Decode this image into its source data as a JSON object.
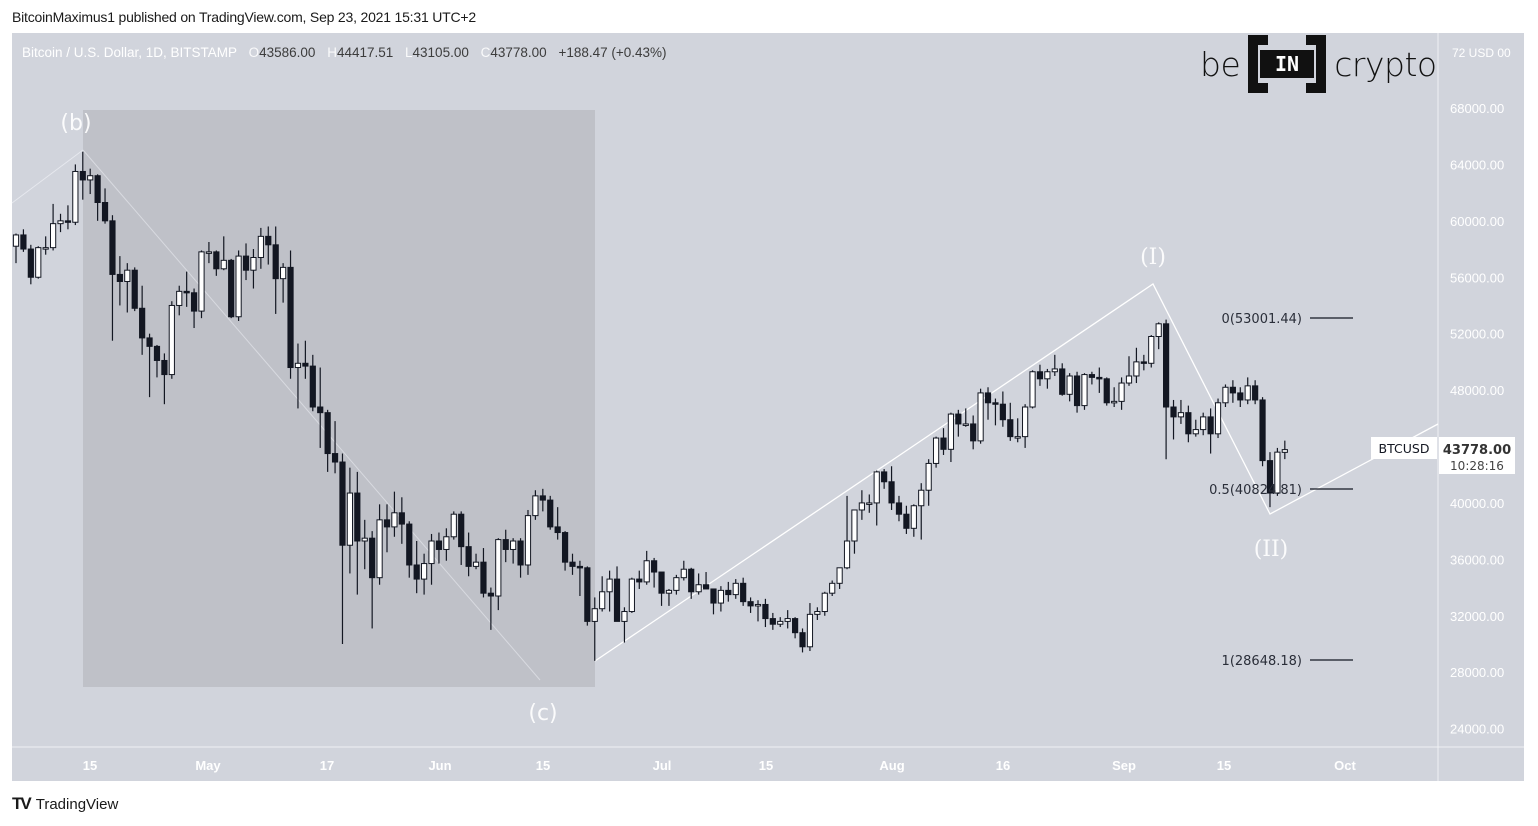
{
  "header": {
    "published": "BitcoinMaximus1 published on TradingView.com, Sep 23, 2021 15:31 UTC+2"
  },
  "legend": {
    "symbol": "Bitcoin / U.S. Dollar, 1D, BITSTAMP",
    "o_label": "O",
    "o": "43586.00",
    "h_label": "H",
    "h": "44417.51",
    "l_label": "L",
    "l": "43105.00",
    "c_label": "C",
    "c": "43778.00",
    "change": "+188.47 (+0.43%)"
  },
  "logo": {
    "left": "be",
    "mid": "IN",
    "right": "crypto"
  },
  "footer": {
    "brand_mark": "TV",
    "brand": "TradingView"
  },
  "price_axis": {
    "currency_label": "72 USD 00",
    "ticks": [
      "68000.00",
      "64000.00",
      "60000.00",
      "56000.00",
      "52000.00",
      "48000.00",
      "40000.00",
      "36000.00",
      "32000.00",
      "28000.00",
      "24000.00"
    ],
    "last_price": "43778.00",
    "countdown": "10:28:16",
    "symbol_tag": "BTCUSD"
  },
  "time_axis": {
    "ticks": [
      "15",
      "May",
      "17",
      "Jun",
      "15",
      "Jul",
      "15",
      "Aug",
      "16",
      "Sep",
      "15",
      "Oct"
    ]
  },
  "colors": {
    "background": "#d1d4dc",
    "shaded_box": "#bfc1c8",
    "up_body": "#ffffff",
    "down_body": "#131722",
    "wick": "#131722",
    "annotation": "#ffffff",
    "fib_text": "#2a2e39"
  },
  "annotations": {
    "wave_b": "(b)",
    "wave_c": "(c)",
    "wave_I": "(I)",
    "wave_II": "(II)",
    "fib_0": "0(53001.44)",
    "fib_05": "0.5(40824.81)",
    "fib_1": "1(28648.18)"
  },
  "chart_data": {
    "type": "candlestick",
    "title": "Bitcoin / U.S. Dollar, 1D, BITSTAMP",
    "xlabel": "",
    "ylabel": "USD",
    "ylim": [
      22500,
      72000
    ],
    "grid": false,
    "x_tick_labels": [
      "15",
      "May",
      "17",
      "Jun",
      "15",
      "Jul",
      "15",
      "Aug",
      "16",
      "Sep",
      "15",
      "Oct"
    ],
    "y_tick_labels": [
      24000,
      28000,
      32000,
      36000,
      40000,
      48000,
      52000,
      56000,
      60000,
      64000,
      68000
    ],
    "last": {
      "open": 43586.0,
      "high": 44417.51,
      "low": 43105.0,
      "close": 43778.0,
      "change": 188.47,
      "change_pct": 0.43
    },
    "fibonacci": [
      {
        "level": 0,
        "price": 53001.44
      },
      {
        "level": 0.5,
        "price": 40824.81
      },
      {
        "level": 1,
        "price": 28648.18
      }
    ],
    "wave_labels": [
      {
        "label": "(b)",
        "date": "2021-04-14",
        "price": 64900
      },
      {
        "label": "(c)",
        "date": "2021-06-22",
        "price": 28800
      },
      {
        "label": "(I)",
        "date": "2021-09-07",
        "price": 55500
      },
      {
        "label": "(II)",
        "date": "2021-09-21",
        "price": 39000
      }
    ],
    "candles": [
      [
        "04-05",
        58200,
        59100,
        57000,
        59000
      ],
      [
        "04-06",
        59000,
        59400,
        57800,
        58000
      ],
      [
        "04-07",
        58000,
        58300,
        55500,
        56000
      ],
      [
        "04-08",
        56000,
        58200,
        55900,
        58100
      ],
      [
        "04-09",
        58100,
        58900,
        57600,
        58100
      ],
      [
        "04-10",
        58100,
        61200,
        57900,
        59800
      ],
      [
        "04-11",
        59800,
        60500,
        59200,
        60000
      ],
      [
        "04-12",
        60000,
        61100,
        59400,
        59900
      ],
      [
        "04-13",
        59900,
        64000,
        59700,
        63500
      ],
      [
        "04-14",
        63500,
        64900,
        61500,
        62900
      ],
      [
        "04-15",
        62900,
        63700,
        61900,
        63200
      ],
      [
        "04-16",
        63200,
        63300,
        60000,
        61300
      ],
      [
        "04-17",
        61300,
        62300,
        59800,
        60000
      ],
      [
        "04-18",
        60000,
        60400,
        51500,
        56200
      ],
      [
        "04-19",
        56200,
        57500,
        54000,
        55700
      ],
      [
        "04-20",
        55700,
        57000,
        53500,
        56500
      ],
      [
        "04-21",
        56500,
        56700,
        53600,
        53800
      ],
      [
        "04-22",
        53800,
        55400,
        50500,
        51700
      ],
      [
        "04-23",
        51700,
        52000,
        47500,
        51100
      ],
      [
        "04-24",
        51100,
        51200,
        48900,
        50100
      ],
      [
        "04-25",
        50100,
        50600,
        47000,
        49100
      ],
      [
        "04-26",
        49100,
        54300,
        48800,
        54000
      ],
      [
        "04-27",
        54000,
        55400,
        53300,
        55000
      ],
      [
        "04-28",
        55000,
        56400,
        53900,
        54900
      ],
      [
        "04-29",
        54900,
        55200,
        52400,
        53600
      ],
      [
        "04-30",
        53600,
        57900,
        53100,
        57800
      ],
      [
        "05-01",
        57800,
        58500,
        57000,
        57800
      ],
      [
        "05-02",
        57800,
        57900,
        56100,
        56600
      ],
      [
        "05-03",
        56600,
        58900,
        56500,
        57200
      ],
      [
        "05-04",
        57200,
        57300,
        53100,
        53200
      ],
      [
        "05-05",
        53200,
        57900,
        52900,
        57500
      ],
      [
        "05-06",
        57500,
        58400,
        55800,
        56500
      ],
      [
        "05-07",
        56500,
        58000,
        55200,
        57400
      ],
      [
        "05-08",
        57400,
        59500,
        56600,
        58900
      ],
      [
        "05-09",
        58900,
        59600,
        56900,
        58300
      ],
      [
        "05-10",
        58300,
        59600,
        53400,
        55900
      ],
      [
        "05-11",
        55900,
        57000,
        54200,
        56700
      ],
      [
        "05-12",
        56700,
        57900,
        48800,
        49600
      ],
      [
        "05-13",
        49600,
        51300,
        46700,
        49900
      ],
      [
        "05-14",
        49900,
        51500,
        48800,
        49700
      ],
      [
        "05-15",
        49700,
        50500,
        46500,
        46800
      ],
      [
        "05-16",
        46800,
        49600,
        43900,
        46400
      ],
      [
        "05-17",
        46400,
        46600,
        42200,
        43500
      ],
      [
        "05-18",
        43500,
        45800,
        42100,
        42900
      ],
      [
        "05-19",
        42900,
        43500,
        30000,
        37000
      ],
      [
        "05-20",
        37000,
        42500,
        35000,
        40700
      ],
      [
        "05-21",
        40700,
        42200,
        33500,
        37300
      ],
      [
        "05-22",
        37300,
        38800,
        35300,
        37500
      ],
      [
        "05-23",
        37500,
        38000,
        31100,
        34700
      ],
      [
        "05-24",
        34700,
        39900,
        34200,
        38800
      ],
      [
        "05-25",
        38800,
        39900,
        36500,
        38300
      ],
      [
        "05-26",
        38300,
        40800,
        37600,
        39300
      ],
      [
        "05-27",
        39300,
        40400,
        37100,
        38500
      ],
      [
        "05-28",
        38500,
        38700,
        34700,
        35600
      ],
      [
        "05-29",
        35600,
        37300,
        33600,
        34600
      ],
      [
        "05-30",
        34600,
        36400,
        33500,
        35700
      ],
      [
        "05-31",
        35700,
        37800,
        34200,
        37300
      ],
      [
        "06-01",
        37300,
        37900,
        35700,
        36700
      ],
      [
        "06-02",
        36700,
        38200,
        35900,
        37600
      ],
      [
        "06-03",
        37600,
        39400,
        37400,
        39200
      ],
      [
        "06-04",
        39200,
        39400,
        35600,
        36900
      ],
      [
        "06-05",
        36900,
        37900,
        34800,
        35500
      ],
      [
        "06-06",
        35500,
        36400,
        35300,
        35800
      ],
      [
        "06-07",
        35800,
        36800,
        33300,
        33600
      ],
      [
        "06-08",
        33600,
        34000,
        31000,
        33400
      ],
      [
        "06-09",
        33400,
        37500,
        32400,
        37400
      ],
      [
        "06-10",
        37400,
        38100,
        35800,
        36700
      ],
      [
        "06-11",
        36700,
        37500,
        35700,
        37300
      ],
      [
        "06-12",
        37300,
        37500,
        34700,
        35600
      ],
      [
        "06-13",
        35600,
        39500,
        34900,
        39100
      ],
      [
        "06-14",
        39100,
        40900,
        38800,
        40500
      ],
      [
        "06-15",
        40500,
        41000,
        39400,
        40200
      ],
      [
        "06-16",
        40200,
        40500,
        38100,
        38300
      ],
      [
        "06-17",
        38300,
        39700,
        37400,
        37900
      ],
      [
        "06-18",
        37900,
        38000,
        35200,
        35800
      ],
      [
        "06-19",
        35800,
        36400,
        34900,
        35500
      ],
      [
        "06-20",
        35500,
        35900,
        33400,
        35400
      ],
      [
        "06-21",
        35400,
        35500,
        31300,
        31600
      ],
      [
        "06-22",
        31600,
        33300,
        28800,
        32500
      ],
      [
        "06-23",
        32500,
        34800,
        32300,
        33700
      ],
      [
        "06-24",
        33700,
        35200,
        32300,
        34600
      ],
      [
        "06-25",
        34600,
        35500,
        31600,
        31600
      ],
      [
        "06-26",
        31600,
        32600,
        30100,
        32300
      ],
      [
        "06-27",
        32300,
        34700,
        32200,
        34600
      ],
      [
        "06-28",
        34600,
        35200,
        33900,
        34400
      ],
      [
        "06-29",
        34400,
        36600,
        34200,
        35900
      ],
      [
        "06-30",
        35900,
        36100,
        34000,
        35100
      ],
      [
        "07-01",
        35100,
        35100,
        32700,
        33600
      ],
      [
        "07-02",
        33600,
        33900,
        32700,
        33800
      ],
      [
        "07-03",
        33800,
        34900,
        33500,
        34700
      ],
      [
        "07-04",
        34700,
        35900,
        34500,
        35300
      ],
      [
        "07-05",
        35300,
        35400,
        33200,
        33700
      ],
      [
        "07-06",
        33700,
        35000,
        33500,
        34200
      ],
      [
        "07-07",
        34200,
        35100,
        33900,
        33900
      ],
      [
        "07-08",
        33900,
        33900,
        32100,
        32900
      ],
      [
        "07-09",
        32900,
        34100,
        32300,
        33800
      ],
      [
        "07-10",
        33800,
        34400,
        33000,
        33500
      ],
      [
        "07-11",
        33500,
        34600,
        33200,
        34300
      ],
      [
        "07-12",
        34300,
        34700,
        32700,
        33000
      ],
      [
        "07-13",
        33000,
        33300,
        32200,
        32700
      ],
      [
        "07-14",
        32700,
        33100,
        31600,
        32800
      ],
      [
        "07-15",
        32800,
        33200,
        31200,
        31800
      ],
      [
        "07-16",
        31800,
        32200,
        31000,
        31400
      ],
      [
        "07-17",
        31400,
        31900,
        31200,
        31600
      ],
      [
        "07-18",
        31600,
        32400,
        31100,
        31800
      ],
      [
        "07-19",
        31800,
        31900,
        30400,
        30800
      ],
      [
        "07-20",
        30800,
        31100,
        29400,
        29800
      ],
      [
        "07-21",
        29800,
        32900,
        29500,
        32100
      ],
      [
        "07-22",
        32100,
        32600,
        31700,
        32300
      ],
      [
        "07-23",
        32300,
        33700,
        32000,
        33600
      ],
      [
        "07-24",
        33600,
        34500,
        33400,
        34300
      ],
      [
        "07-25",
        34300,
        35400,
        33900,
        35400
      ],
      [
        "07-26",
        35400,
        40500,
        35300,
        37300
      ],
      [
        "07-27",
        37300,
        39500,
        36400,
        39500
      ],
      [
        "07-28",
        39500,
        40900,
        38800,
        40000
      ],
      [
        "07-29",
        40000,
        40600,
        39300,
        40000
      ],
      [
        "07-30",
        40000,
        42300,
        38400,
        42200
      ],
      [
        "07-31",
        42200,
        42400,
        41000,
        41500
      ],
      [
        "08-01",
        41500,
        42600,
        39500,
        40000
      ],
      [
        "08-02",
        40000,
        40500,
        38700,
        39200
      ],
      [
        "08-03",
        39200,
        39800,
        37800,
        38200
      ],
      [
        "08-04",
        38200,
        39900,
        37600,
        39800
      ],
      [
        "08-05",
        39800,
        41400,
        37400,
        40900
      ],
      [
        "08-06",
        40900,
        43100,
        39800,
        42800
      ],
      [
        "08-07",
        42800,
        44700,
        42500,
        44600
      ],
      [
        "08-08",
        44600,
        45300,
        43400,
        43800
      ],
      [
        "08-09",
        43800,
        46400,
        42900,
        46300
      ],
      [
        "08-10",
        46300,
        46600,
        44700,
        45600
      ],
      [
        "08-11",
        45600,
        46700,
        45400,
        45600
      ],
      [
        "08-12",
        45600,
        46200,
        43800,
        44400
      ],
      [
        "08-13",
        44400,
        48100,
        44200,
        47800
      ],
      [
        "08-14",
        47800,
        48200,
        45900,
        47100
      ],
      [
        "08-15",
        47100,
        47400,
        45500,
        47000
      ],
      [
        "08-16",
        47000,
        47900,
        45400,
        45900
      ],
      [
        "08-17",
        45900,
        47100,
        44400,
        44700
      ],
      [
        "08-18",
        44700,
        46000,
        44300,
        44700
      ],
      [
        "08-19",
        44700,
        47000,
        43900,
        46800
      ],
      [
        "08-20",
        46800,
        49400,
        46700,
        49300
      ],
      [
        "08-21",
        49300,
        49800,
        48300,
        48800
      ],
      [
        "08-22",
        48800,
        49500,
        48100,
        49300
      ],
      [
        "08-23",
        49300,
        50500,
        49000,
        49500
      ],
      [
        "08-24",
        49500,
        49900,
        47600,
        47700
      ],
      [
        "08-25",
        47700,
        49200,
        47200,
        49000
      ],
      [
        "08-26",
        49000,
        49300,
        46400,
        46900
      ],
      [
        "08-27",
        46900,
        49200,
        46600,
        49100
      ],
      [
        "08-28",
        49100,
        49300,
        48400,
        48900
      ],
      [
        "08-29",
        48900,
        49600,
        47800,
        48800
      ],
      [
        "08-30",
        48800,
        48900,
        46900,
        47100
      ],
      [
        "08-31",
        47100,
        48200,
        46800,
        47200
      ],
      [
        "09-01",
        47200,
        48900,
        46600,
        48500
      ],
      [
        "09-02",
        48500,
        50400,
        48300,
        49000
      ],
      [
        "09-03",
        49000,
        51000,
        48500,
        50000
      ],
      [
        "09-04",
        50000,
        50500,
        49400,
        49900
      ],
      [
        "09-05",
        49900,
        51900,
        49600,
        51800
      ],
      [
        "09-06",
        51800,
        52800,
        50900,
        52700
      ],
      [
        "09-07",
        52700,
        53000,
        43100,
        46800
      ],
      [
        "09-08",
        46800,
        47300,
        44500,
        46100
      ],
      [
        "09-09",
        46100,
        47300,
        45600,
        46400
      ],
      [
        "09-10",
        46400,
        46900,
        44300,
        44900
      ],
      [
        "09-11",
        44900,
        45900,
        44700,
        45200
      ],
      [
        "09-12",
        45200,
        46400,
        44800,
        46100
      ],
      [
        "09-13",
        46100,
        46700,
        43500,
        44900
      ],
      [
        "09-14",
        44900,
        47400,
        44600,
        47100
      ],
      [
        "09-15",
        47100,
        48400,
        46800,
        48200
      ],
      [
        "09-16",
        48200,
        48700,
        47100,
        47800
      ],
      [
        "09-17",
        47800,
        48200,
        46800,
        47300
      ],
      [
        "09-18",
        47300,
        48900,
        47000,
        48300
      ],
      [
        "09-19",
        48300,
        48700,
        47000,
        47300
      ],
      [
        "09-20",
        47300,
        47500,
        42600,
        43000
      ],
      [
        "09-21",
        43000,
        43600,
        39700,
        40700
      ],
      [
        "09-22",
        40700,
        43900,
        40500,
        43600
      ],
      [
        "09-23",
        43586,
        44417,
        43105,
        43778
      ]
    ]
  }
}
